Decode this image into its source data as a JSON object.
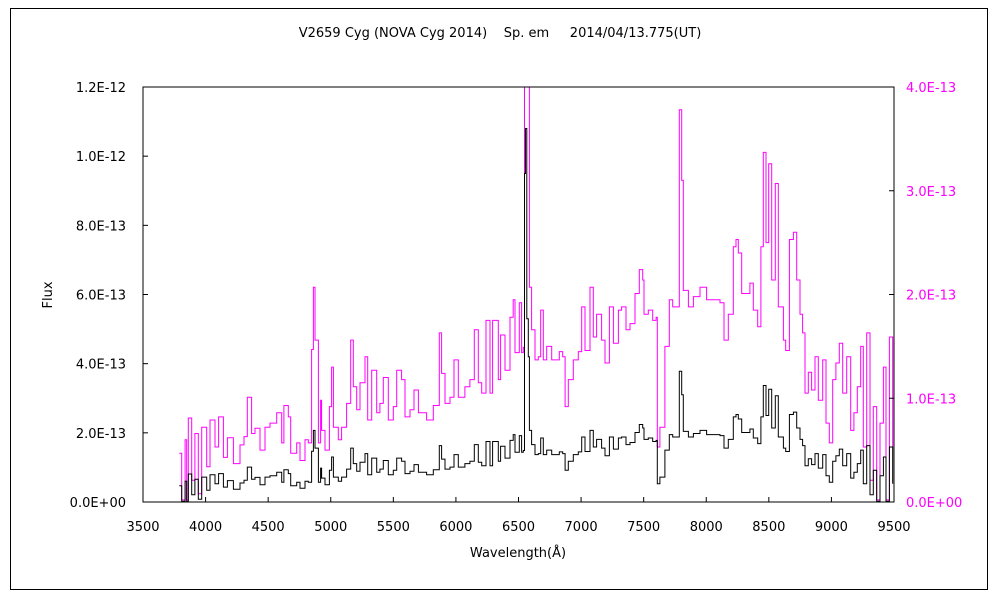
{
  "chart_data": {
    "type": "line",
    "title": "V2659 Cyg (NOVA Cyg 2014)    Sp. em     2014/04/13.775(UT)",
    "xlabel": "Wavelength(Å)",
    "ylabel": "Flux",
    "xlim": [
      3500,
      9500
    ],
    "ylim_left": [
      0,
      1.2e-12
    ],
    "ylim_right": [
      0,
      4e-13
    ],
    "x_ticks": [
      "3500",
      "4000",
      "4500",
      "5000",
      "5500",
      "6000",
      "6500",
      "7000",
      "7500",
      "8000",
      "8500",
      "9000",
      "9500"
    ],
    "y_ticks_left": [
      "0.0E+00",
      "2.0E-13",
      "4.0E-13",
      "6.0E-13",
      "8.0E-13",
      "1.0E-12",
      "1.2E-12"
    ],
    "y_ticks_right": [
      "0.0E+00",
      "1.0E-13",
      "2.0E-13",
      "3.0E-13",
      "4.0E-13"
    ],
    "grid": false,
    "series": [
      {
        "axis": "left",
        "color": "#000000"
      },
      {
        "axis": "right",
        "color": "#ff00ff"
      }
    ],
    "x": [
      3790,
      3809,
      3836,
      3849,
      3862,
      3889,
      3915,
      3942,
      3969,
      4009,
      4035,
      4075,
      4104,
      4142,
      4174,
      4222,
      4275,
      4307,
      4333,
      4368,
      4395,
      4435,
      4475,
      4515,
      4568,
      4608,
      4626,
      4661,
      4680,
      4728,
      4754,
      4794,
      4821,
      4847,
      4861,
      4874,
      4901,
      4919,
      4927,
      4954,
      4989,
      5007,
      5021,
      5060,
      5087,
      5127,
      5159,
      5180,
      5207,
      5234,
      5274,
      5295,
      5327,
      5367,
      5393,
      5420,
      5460,
      5500,
      5527,
      5566,
      5593,
      5633,
      5665,
      5700,
      5766,
      5819,
      5867,
      5886,
      5913,
      5953,
      5985,
      6019,
      6072,
      6112,
      6147,
      6179,
      6206,
      6240,
      6272,
      6293,
      6339,
      6357,
      6392,
      6432,
      6458,
      6472,
      6506,
      6525,
      6538,
      6548,
      6556,
      6566,
      6578,
      6587,
      6605,
      6632,
      6658,
      6677,
      6698,
      6725,
      6765,
      6826,
      6853,
      6872,
      6898,
      6938,
      6978,
      7005,
      7031,
      7071,
      7098,
      7124,
      7164,
      7191,
      7226,
      7258,
      7298,
      7324,
      7359,
      7391,
      7431,
      7465,
      7492,
      7503,
      7537,
      7572,
      7599,
      7609,
      7630,
      7652,
      7670,
      7705,
      7732,
      7764,
      7785,
      7804,
      7817,
      7857,
      7897,
      7950,
      8003,
      8057,
      8110,
      8142,
      8176,
      8216,
      8238,
      8256,
      8283,
      8323,
      8349,
      8376,
      8411,
      8437,
      8456,
      8477,
      8499,
      8523,
      8552,
      8576,
      8616,
      8635,
      8664,
      8696,
      8723,
      8749,
      8770,
      8789,
      8815,
      8842,
      8869,
      8895,
      8930,
      8957,
      8983,
      9010,
      9036,
      9063,
      9090,
      9122,
      9154,
      9180,
      9207,
      9234,
      9255,
      9282,
      9308,
      9335,
      9362,
      9388,
      9415,
      9436,
      9463,
      9490
    ],
    "y": [
      4.7e-14,
      2e-15,
      6e-14,
      2e-15,
      8.1e-14,
      2.1e-14,
      6.6e-14,
      8e-15,
      7.2e-14,
      3.4e-14,
      7.9e-14,
      5.3e-14,
      8.2e-14,
      4.3e-14,
      6.2e-14,
      3.7e-14,
      5.5e-14,
      6.3e-14,
      1.01e-13,
      6.6e-14,
      7.1e-14,
      5e-14,
      7.2e-14,
      7.6e-14,
      8.6e-14,
      5.7e-14,
      9.3e-14,
      8.2e-14,
      4.7e-14,
      5.7e-14,
      4e-14,
      6e-14,
      5.7e-14,
      1.47e-13,
      2.07e-13,
      1.56e-13,
      5.7e-14,
      9.8e-14,
      6.9e-14,
      5e-14,
      9.2e-14,
      1.3e-13,
      7.2e-14,
      6e-14,
      7.2e-14,
      9.5e-14,
      1.56e-13,
      1.11e-13,
      8.9e-14,
      1.15e-13,
      1.4e-13,
      7.9e-14,
      1.27e-13,
      8.6e-14,
      9.5e-14,
      1.2e-13,
      7.9e-14,
      9.2e-14,
      1.27e-13,
      1.18e-13,
      8.2e-14,
      8.9e-14,
      1.08e-13,
      8.6e-14,
      7.9e-14,
      9.3e-14,
      1.63e-13,
      1.24e-13,
      9.5e-14,
      1.01e-13,
      1.37e-13,
      1.01e-13,
      1.11e-13,
      1.18e-13,
      1.66e-13,
      1.15e-13,
      1.05e-13,
      1.75e-13,
      1.05e-13,
      1.75e-13,
      1.18e-13,
      1.61e-13,
      1.27e-13,
      1.78e-13,
      1.95e-13,
      1.44e-13,
      1.92e-13,
      1.44e-13,
      1.49e-13,
      9.5e-13,
      1.08e-12,
      5.3e-13,
      4.2e-13,
      2.07e-13,
      1.66e-13,
      1.37e-13,
      1.4e-13,
      1.85e-13,
      1.37e-13,
      1.5e-13,
      1.37e-13,
      1.45e-13,
      1.4e-13,
      9.2e-14,
      1.18e-13,
      1.37e-13,
      1.45e-13,
      1.88e-13,
      1.46e-13,
      2.07e-13,
      1.59e-13,
      1.81e-13,
      1.56e-13,
      1.34e-13,
      1.88e-13,
      1.53e-13,
      1.85e-13,
      1.88e-13,
      1.66e-13,
      1.72e-13,
      2.01e-13,
      2.24e-13,
      2.14e-13,
      1.81e-13,
      1.85e-13,
      1.75e-13,
      1.78e-13,
      5.3e-14,
      7.2e-14,
      7.2e-14,
      1.5e-13,
      1.95e-13,
      1.88e-13,
      1.88e-13,
      3.78e-13,
      3.1e-13,
      2.04e-13,
      1.88e-13,
      1.98e-13,
      2.07e-13,
      1.95e-13,
      1.95e-13,
      1.92e-13,
      1.56e-13,
      1.81e-13,
      2.46e-13,
      2.53e-13,
      2.4e-13,
      2.01e-13,
      2.01e-13,
      2.11e-13,
      1.85e-13,
      1.69e-13,
      2.46e-13,
      3.37e-13,
      2.5e-13,
      3.26e-13,
      2.14e-13,
      3.07e-13,
      1.88e-13,
      1.56e-13,
      1.46e-13,
      2.53e-13,
      2.6e-13,
      2.14e-13,
      1.81e-13,
      1.63e-13,
      1.05e-13,
      1.25e-13,
      1.08e-13,
      1.4e-13,
      9.8e-14,
      1.37e-13,
      7.6e-14,
      5.7e-14,
      1.18e-13,
      1.34e-13,
      1.53e-13,
      1.05e-13,
      1.4e-13,
      6.9e-14,
      8.6e-14,
      1.11e-13,
      1.5e-13,
      5.3e-14,
      1.63e-13,
      2.1e-14,
      9.2e-14,
      2e-15,
      7.6e-14,
      1.3e-13,
      2e-15,
      1.59e-13,
      5.3e-14
    ]
  }
}
